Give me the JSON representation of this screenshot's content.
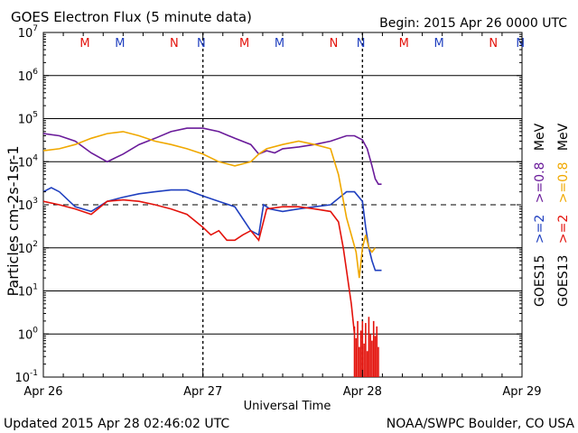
{
  "header": {
    "title": "GOES Electron Flux (5 minute data)",
    "begin": "Begin: 2015 Apr 26 0000 UTC"
  },
  "footer": {
    "updated": "Updated 2015 Apr 28 02:46:02 UTC",
    "source": "NOAA/SWPC Boulder, CO USA"
  },
  "legend": {
    "goes15_label": "GOES15",
    "goes13_label": "GOES13",
    "ge2_label": ">=2",
    "ge08_label": ">=0.8",
    "mev_label": "MeV",
    "colors": {
      "goes15_ge2": "#1f3fbf",
      "goes15_ge08": "#6a1b9a",
      "goes13_ge2": "#e3120b",
      "goes13_ge08": "#f0a800"
    }
  },
  "chart_data": {
    "type": "line",
    "title": "GOES Electron Flux (5 minute data)",
    "xlabel": "Universal Time",
    "ylabel": "Particles cm-2s-1sr-1",
    "yscale": "log",
    "ylim": [
      0.1,
      10000000
    ],
    "xlim": [
      0,
      3
    ],
    "x_ticks": [
      {
        "x": 0,
        "label": "Apr 26"
      },
      {
        "x": 1,
        "label": "Apr 27"
      },
      {
        "x": 2,
        "label": "Apr 28"
      },
      {
        "x": 3,
        "label": "Apr 29"
      }
    ],
    "y_ticks": [
      {
        "exp": -1,
        "base": "10",
        "sup": "-1"
      },
      {
        "exp": 0,
        "base": "10",
        "sup": "0"
      },
      {
        "exp": 1,
        "base": "10",
        "sup": "1"
      },
      {
        "exp": 2,
        "base": "10",
        "sup": "2"
      },
      {
        "exp": 3,
        "base": "10",
        "sup": "3"
      },
      {
        "exp": 4,
        "base": "10",
        "sup": "4"
      },
      {
        "exp": 5,
        "base": "10",
        "sup": "5"
      },
      {
        "exp": 6,
        "base": "10",
        "sup": "6"
      },
      {
        "exp": 7,
        "base": "10",
        "sup": "7"
      }
    ],
    "threshold": 1000,
    "midnight_noon_markers": [
      {
        "x": 0.26,
        "label": "M",
        "color": "#e3120b"
      },
      {
        "x": 0.48,
        "label": "M",
        "color": "#1f3fbf"
      },
      {
        "x": 0.82,
        "label": "N",
        "color": "#e3120b"
      },
      {
        "x": 0.99,
        "label": "N",
        "color": "#1f3fbf"
      },
      {
        "x": 1.26,
        "label": "M",
        "color": "#e3120b"
      },
      {
        "x": 1.48,
        "label": "M",
        "color": "#1f3fbf"
      },
      {
        "x": 1.82,
        "label": "N",
        "color": "#e3120b"
      },
      {
        "x": 1.99,
        "label": "N",
        "color": "#1f3fbf"
      },
      {
        "x": 2.26,
        "label": "M",
        "color": "#e3120b"
      },
      {
        "x": 2.48,
        "label": "M",
        "color": "#1f3fbf"
      },
      {
        "x": 2.82,
        "label": "N",
        "color": "#e3120b"
      },
      {
        "x": 2.99,
        "label": "N",
        "color": "#1f3fbf"
      }
    ],
    "marker_lines": [
      1.0,
      2.0
    ],
    "series": [
      {
        "name": "GOES15 >=0.8 MeV",
        "color": "#6a1b9a",
        "x": [
          0,
          0.1,
          0.2,
          0.3,
          0.4,
          0.5,
          0.6,
          0.7,
          0.8,
          0.9,
          1.0,
          1.1,
          1.2,
          1.3,
          1.35,
          1.4,
          1.45,
          1.5,
          1.6,
          1.7,
          1.8,
          1.9,
          1.95,
          2.0,
          2.03,
          2.06,
          2.08,
          2.1,
          2.12
        ],
        "values": [
          45000,
          40000,
          30000,
          16000,
          10000,
          15000,
          25000,
          35000,
          50000,
          60000,
          60000,
          50000,
          35000,
          25000,
          15000,
          18000,
          16000,
          20000,
          22000,
          25000,
          30000,
          40000,
          40000,
          32000,
          20000,
          8000,
          4000,
          3000,
          3000
        ]
      },
      {
        "name": "GOES15 >=2 MeV",
        "color": "#1f3fbf",
        "x": [
          0,
          0.05,
          0.1,
          0.2,
          0.3,
          0.4,
          0.5,
          0.6,
          0.7,
          0.8,
          0.9,
          1.0,
          1.1,
          1.2,
          1.3,
          1.35,
          1.38,
          1.42,
          1.5,
          1.6,
          1.7,
          1.8,
          1.9,
          1.95,
          2.0,
          2.02,
          2.04,
          2.06,
          2.08,
          2.1,
          2.12
        ],
        "values": [
          2000,
          2500,
          2000,
          900,
          700,
          1200,
          1500,
          1800,
          2000,
          2200,
          2200,
          1600,
          1200,
          900,
          250,
          200,
          1000,
          800,
          700,
          800,
          900,
          1000,
          2000,
          2000,
          1200,
          300,
          100,
          50,
          30,
          30,
          30
        ]
      },
      {
        "name": "GOES13 >=0.8 MeV",
        "color": "#f0a800",
        "x": [
          0,
          0.1,
          0.2,
          0.3,
          0.4,
          0.5,
          0.6,
          0.7,
          0.8,
          0.9,
          1.0,
          1.1,
          1.2,
          1.3,
          1.35,
          1.4,
          1.5,
          1.6,
          1.7,
          1.8,
          1.85,
          1.9,
          1.93,
          1.96,
          1.98,
          2.0,
          2.02,
          2.04,
          2.06,
          2.08
        ],
        "values": [
          18000,
          20000,
          25000,
          35000,
          45000,
          50000,
          40000,
          30000,
          25000,
          20000,
          15000,
          10000,
          8000,
          10000,
          15000,
          20000,
          25000,
          30000,
          25000,
          20000,
          5000,
          500,
          200,
          80,
          20,
          100,
          200,
          100,
          80,
          100
        ]
      },
      {
        "name": "GOES13 >=2 MeV",
        "color": "#e3120b",
        "x": [
          0,
          0.1,
          0.2,
          0.3,
          0.4,
          0.5,
          0.6,
          0.7,
          0.8,
          0.9,
          1.0,
          1.05,
          1.1,
          1.15,
          1.2,
          1.25,
          1.3,
          1.35,
          1.4,
          1.5,
          1.6,
          1.7,
          1.8,
          1.85,
          1.88,
          1.9,
          1.93,
          1.95
        ],
        "values": [
          1200,
          1000,
          800,
          600,
          1200,
          1300,
          1200,
          1000,
          800,
          600,
          300,
          200,
          250,
          150,
          150,
          200,
          250,
          150,
          800,
          900,
          900,
          800,
          700,
          400,
          100,
          30,
          5,
          1
        ]
      }
    ],
    "spikes": {
      "color": "#e3120b",
      "x": [
        1.95,
        1.96,
        1.97,
        1.98,
        1.99,
        2.0,
        2.01,
        2.02,
        2.03,
        2.04,
        2.05,
        2.06,
        2.07,
        2.08,
        2.09,
        2.1
      ],
      "values": [
        1.5,
        0.8,
        2,
        0.5,
        1.2,
        2,
        0.6,
        1.8,
        0.4,
        2.5,
        1,
        0.7,
        2,
        0.9,
        1.5,
        0.5
      ]
    }
  }
}
